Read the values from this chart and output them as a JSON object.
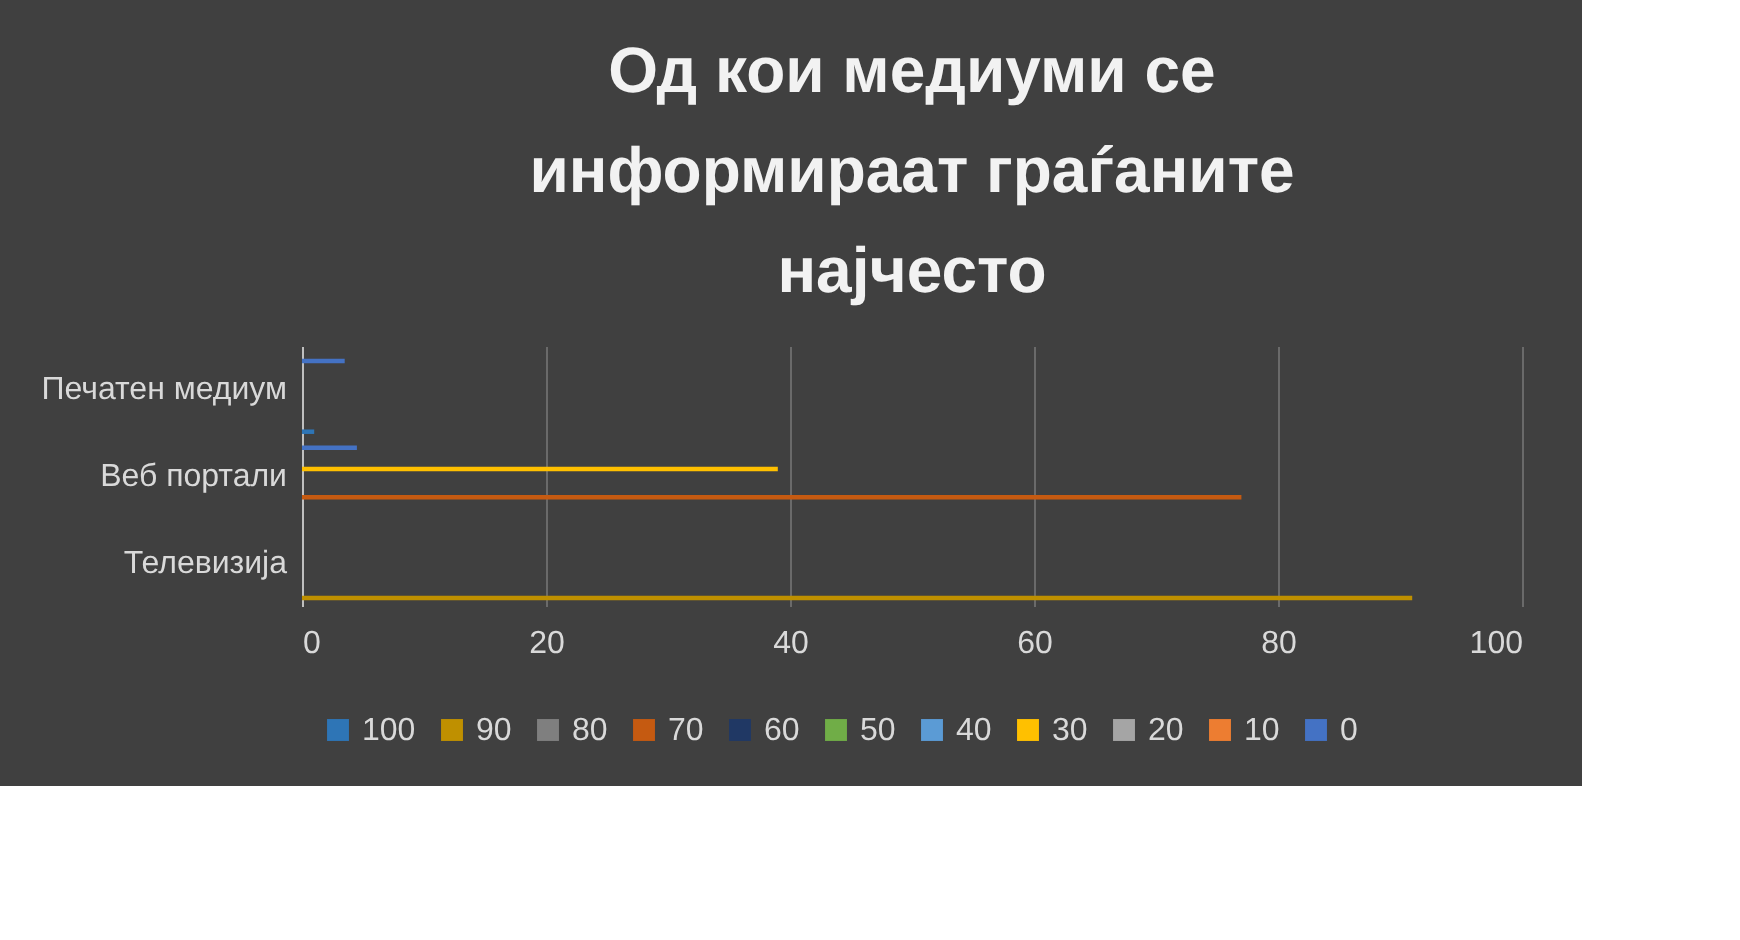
{
  "chart_data": {
    "type": "bar",
    "orientation": "horizontal",
    "title": "Од кои медиуми се информираат граѓаните најчесто",
    "categories": [
      "Печатен медиум",
      "Веб портали",
      "Телевизија"
    ],
    "series": [
      {
        "name": "100",
        "color": "#2e75b6",
        "values": [
          1,
          null,
          null
        ]
      },
      {
        "name": "90",
        "color": "#bf9000",
        "values": [
          null,
          null,
          91
        ]
      },
      {
        "name": "80",
        "color": "#7f7f7f",
        "values": [
          null,
          null,
          null
        ]
      },
      {
        "name": "70",
        "color": "#c55a11",
        "values": [
          null,
          77,
          null
        ]
      },
      {
        "name": "60",
        "color": "#203864",
        "values": [
          null,
          null,
          null
        ]
      },
      {
        "name": "50",
        "color": "#70ad47",
        "values": [
          null,
          null,
          null
        ]
      },
      {
        "name": "40",
        "color": "#5b9bd5",
        "values": [
          null,
          null,
          null
        ]
      },
      {
        "name": "30",
        "color": "#ffc000",
        "values": [
          null,
          39,
          null
        ]
      },
      {
        "name": "20",
        "color": "#a5a5a5",
        "values": [
          null,
          null,
          null
        ]
      },
      {
        "name": "10",
        "color": "#ed7d31",
        "values": [
          null,
          null,
          null
        ]
      },
      {
        "name": "0",
        "color": "#4472c4",
        "values": [
          3.5,
          4.5,
          null
        ]
      }
    ],
    "xlim": [
      0,
      100
    ],
    "xticks": [
      0,
      20,
      40,
      60,
      80,
      100
    ],
    "grid": "x",
    "legend": "bottom"
  }
}
